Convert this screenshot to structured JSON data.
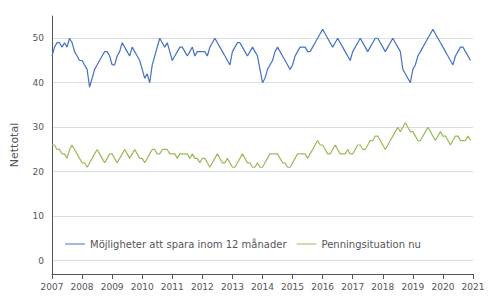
{
  "chart_data": {
    "type": "line",
    "ylabel": "Nettotal",
    "xlim": [
      2007,
      2021
    ],
    "xticks": [
      2007,
      2008,
      2009,
      2010,
      2011,
      2012,
      2013,
      2014,
      2015,
      2016,
      2017,
      2018,
      2019,
      2020,
      2021
    ],
    "ylim": [
      -3,
      55
    ],
    "yticks": [
      0,
      10,
      20,
      30,
      40,
      50
    ],
    "grid": true,
    "legend": "lower left",
    "x": [
      2007,
      2007.0833333333333,
      2007.1666666666667,
      2007.25,
      2007.3333333333333,
      2007.4166666666667,
      2007.5,
      2007.5833333333333,
      2007.6666666666667,
      2007.75,
      2007.8333333333333,
      2007.9166666666667,
      2008,
      2008.0833333333333,
      2008.1666666666667,
      2008.25,
      2008.3333333333333,
      2008.4166666666667,
      2008.5,
      2008.5833333333333,
      2008.6666666666667,
      2008.75,
      2008.8333333333333,
      2008.9166666666667,
      2009,
      2009.0833333333333,
      2009.1666666666667,
      2009.25,
      2009.3333333333333,
      2009.4166666666667,
      2009.5,
      2009.5833333333333,
      2009.6666666666667,
      2009.75,
      2009.8333333333333,
      2009.9166666666667,
      2010,
      2010.0833333333333,
      2010.1666666666667,
      2010.25,
      2010.3333333333333,
      2010.4166666666667,
      2010.5,
      2010.5833333333333,
      2010.6666666666667,
      2010.75,
      2010.8333333333333,
      2010.9166666666667,
      2011,
      2011.0833333333333,
      2011.1666666666667,
      2011.25,
      2011.3333333333333,
      2011.4166666666667,
      2011.5,
      2011.5833333333333,
      2011.6666666666667,
      2011.75,
      2011.8333333333333,
      2011.9166666666667,
      2012,
      2012.0833333333333,
      2012.1666666666667,
      2012.25,
      2012.3333333333333,
      2012.4166666666667,
      2012.5,
      2012.5833333333333,
      2012.6666666666667,
      2012.75,
      2012.8333333333333,
      2012.9166666666667,
      2013,
      2013.0833333333333,
      2013.1666666666667,
      2013.25,
      2013.3333333333333,
      2013.4166666666667,
      2013.5,
      2013.5833333333333,
      2013.6666666666667,
      2013.75,
      2013.8333333333333,
      2013.9166666666667,
      2014,
      2014.0833333333333,
      2014.1666666666667,
      2014.25,
      2014.3333333333333,
      2014.4166666666667,
      2014.5,
      2014.5833333333333,
      2014.6666666666667,
      2014.75,
      2014.8333333333333,
      2014.9166666666667,
      2015,
      2015.0833333333333,
      2015.1666666666667,
      2015.25,
      2015.3333333333333,
      2015.4166666666667,
      2015.5,
      2015.5833333333333,
      2015.6666666666667,
      2015.75,
      2015.8333333333333,
      2015.9166666666667,
      2016,
      2016.0833333333333,
      2016.1666666666667,
      2016.25,
      2016.3333333333333,
      2016.4166666666667,
      2016.5,
      2016.5833333333333,
      2016.6666666666667,
      2016.75,
      2016.8333333333333,
      2016.9166666666667,
      2017,
      2017.0833333333333,
      2017.1666666666667,
      2017.25,
      2017.3333333333333,
      2017.4166666666667,
      2017.5,
      2017.5833333333333,
      2017.6666666666667,
      2017.75,
      2017.8333333333333,
      2017.9166666666667,
      2018,
      2018.0833333333333,
      2018.1666666666667,
      2018.25,
      2018.3333333333333,
      2018.4166666666667,
      2018.5,
      2018.5833333333333,
      2018.6666666666667,
      2018.75,
      2018.8333333333333,
      2018.9166666666667,
      2019,
      2019.0833333333333,
      2019.1666666666667,
      2019.25,
      2019.3333333333333,
      2019.4166666666667,
      2019.5,
      2019.5833333333333,
      2019.6666666666667,
      2019.75,
      2019.8333333333333,
      2019.9166666666667,
      2020,
      2020.0833333333333,
      2020.1666666666667,
      2020.25,
      2020.3333333333333,
      2020.4166666666667,
      2020.5,
      2020.5833333333333,
      2020.6666666666667,
      2020.75,
      2020.8333333333333,
      2020.9166666666667
    ],
    "series": [
      {
        "name": "Möjligheter att spara inom 12 månader",
        "color": "#4472C4",
        "values": [
          46,
          48,
          49,
          49,
          48,
          49,
          48,
          50,
          49,
          47,
          46,
          45,
          45,
          44,
          43,
          39,
          41,
          43,
          44,
          45,
          46,
          47,
          47,
          46,
          44,
          44,
          46,
          47,
          49,
          48,
          47,
          46,
          48,
          47,
          46,
          45,
          43,
          41,
          42,
          40,
          44,
          46,
          48,
          50,
          49,
          48,
          49,
          47,
          45,
          46,
          47,
          48,
          48,
          47,
          46,
          47,
          48,
          46,
          47,
          47,
          47,
          47,
          46,
          48,
          49,
          50,
          49,
          48,
          47,
          46,
          45,
          44,
          47,
          48,
          49,
          49,
          48,
          47,
          46,
          47,
          48,
          47,
          46,
          43,
          40,
          41,
          43,
          44,
          45,
          47,
          48,
          47,
          46,
          45,
          44,
          43,
          44,
          46,
          47,
          48,
          48,
          48,
          47,
          47,
          48,
          49,
          50,
          51,
          52,
          51,
          50,
          49,
          48,
          49,
          50,
          49,
          48,
          47,
          46,
          45,
          47,
          48,
          49,
          50,
          49,
          48,
          47,
          48,
          49,
          50,
          50,
          49,
          48,
          47,
          48,
          49,
          50,
          49,
          48,
          47,
          43,
          42,
          41,
          40,
          43,
          44,
          46,
          47,
          48,
          49,
          50,
          51,
          52,
          51,
          50,
          49,
          48,
          47,
          46,
          45,
          44,
          46,
          47,
          48,
          48,
          47,
          46,
          45
        ]
      },
      {
        "name": "Penningsituation nu",
        "color": "#9BBB59",
        "values": [
          26,
          26,
          25,
          25,
          24,
          24,
          23,
          25,
          26,
          25,
          24,
          23,
          22,
          22,
          21,
          22,
          23,
          24,
          25,
          24,
          23,
          22,
          23,
          24,
          24,
          23,
          22,
          23,
          24,
          25,
          24,
          23,
          24,
          25,
          24,
          23,
          23,
          22,
          23,
          24,
          25,
          25,
          24,
          24,
          25,
          25,
          25,
          24,
          24,
          24,
          23,
          24,
          24,
          24,
          24,
          23,
          24,
          23,
          23,
          22,
          23,
          23,
          22,
          21,
          22,
          23,
          24,
          23,
          22,
          22,
          23,
          22,
          21,
          21,
          22,
          23,
          24,
          23,
          22,
          22,
          21,
          21,
          22,
          21,
          21,
          22,
          23,
          24,
          24,
          24,
          24,
          23,
          22,
          22,
          21,
          21,
          22,
          23,
          24,
          24,
          24,
          24,
          23,
          24,
          25,
          26,
          27,
          26,
          26,
          25,
          24,
          24,
          25,
          26,
          25,
          24,
          24,
          24,
          25,
          24,
          24,
          25,
          26,
          26,
          25,
          25,
          26,
          27,
          27,
          28,
          28,
          27,
          26,
          25,
          26,
          27,
          28,
          29,
          30,
          29,
          30,
          31,
          30,
          29,
          29,
          28,
          27,
          27,
          28,
          29,
          30,
          29,
          28,
          27,
          28,
          29,
          28,
          28,
          27,
          26,
          27,
          28,
          28,
          27,
          27,
          27,
          28,
          27
        ]
      }
    ]
  }
}
